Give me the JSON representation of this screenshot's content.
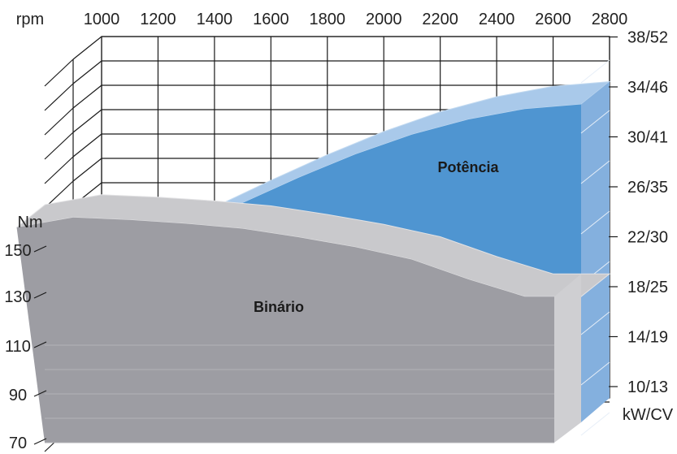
{
  "chart_data": {
    "type": "area",
    "x_unit_label": "rpm",
    "x": [
      1000,
      1200,
      1400,
      1600,
      1800,
      2000,
      2200,
      2400,
      2600,
      2800
    ],
    "left_axis": {
      "unit_label": "Nm",
      "ticks": [
        "70",
        "90",
        "110",
        "130",
        "150"
      ],
      "range": [
        70,
        150
      ]
    },
    "right_axis": {
      "unit_label": "kW/CV",
      "ticks": [
        "10/13",
        "14/19",
        "18/25",
        "22/30",
        "26/35",
        "30/41",
        "34/46",
        "38/52"
      ]
    },
    "series": [
      {
        "name": "Binário",
        "axis": "left",
        "color": "#9d9da3",
        "top_color": "#c9c9cc",
        "side_color": "#cfcfd2",
        "points": [
          [
            800,
            138
          ],
          [
            1000,
            142
          ],
          [
            1200,
            141
          ],
          [
            1400,
            139.5
          ],
          [
            1600,
            137.5
          ],
          [
            1800,
            134
          ],
          [
            2000,
            130
          ],
          [
            2200,
            125
          ],
          [
            2400,
            117
          ],
          [
            2600,
            110
          ],
          [
            2800,
            110
          ]
        ]
      },
      {
        "name": "Potência",
        "axis": "right",
        "color": "#4f95d1",
        "top_color": "#a9c9ea",
        "side_color": "#84b0de",
        "points": [
          [
            1000,
            19.7
          ],
          [
            1200,
            21.4
          ],
          [
            1400,
            23.5
          ],
          [
            1600,
            25.8
          ],
          [
            1800,
            28
          ],
          [
            2000,
            30
          ],
          [
            2200,
            31.7
          ],
          [
            2400,
            33
          ],
          [
            2600,
            33.9
          ],
          [
            2800,
            34.3
          ]
        ]
      }
    ],
    "grid": true
  }
}
